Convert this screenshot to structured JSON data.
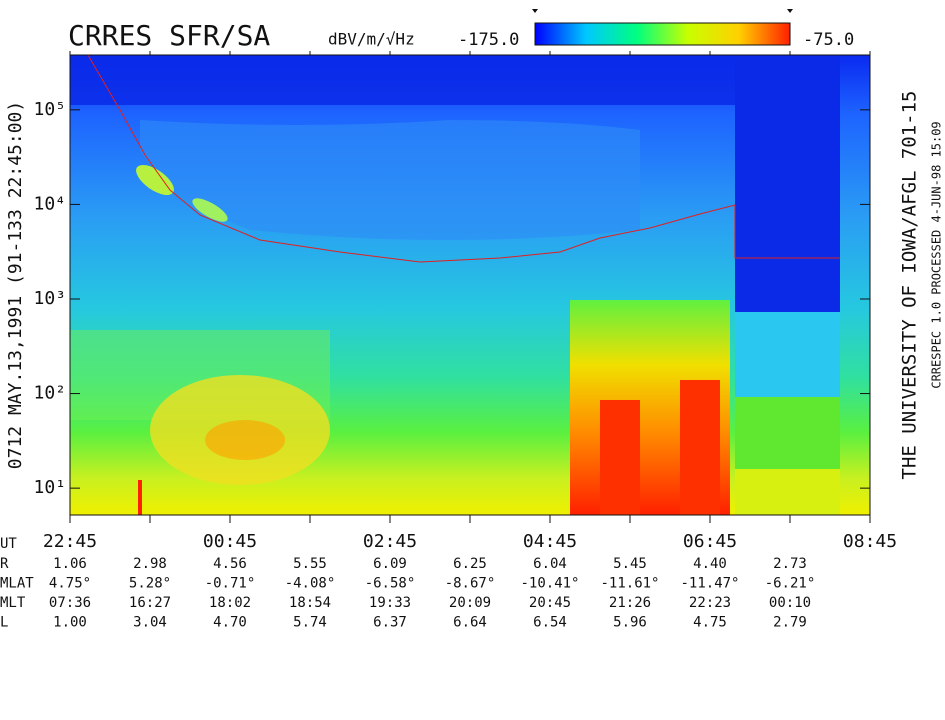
{
  "chart_data": {
    "type": "spectrogram",
    "title": "CRRES SFR/SA",
    "colorbar_label": "dBV/m/√Hz",
    "colorbar_range": [
      {
        "value": -175,
        "label": "-175.0"
      },
      {
        "value": -75,
        "label": "-75.0"
      }
    ],
    "colorbar_colors": [
      "#0000ff",
      "#00c8ff",
      "#00ff80",
      "#c8ff00",
      "#ffd000",
      "#ff2000"
    ],
    "left_label": "0712   MAY.13,1991   (91-133 22:45:00)",
    "right_label": "THE UNIVERSITY OF IOWA/AFGL 701-15",
    "right_note": "CRRESPEC 1.0   PROCESSED   4-JUN-98  15:09",
    "log_y": true,
    "ylim": [
      5.2,
      380000
    ],
    "yticks": [
      {
        "value": 10,
        "label": "10¹"
      },
      {
        "value": 100,
        "label": "10²"
      },
      {
        "value": 1000,
        "label": "10³"
      },
      {
        "value": 10000,
        "label": "10⁴"
      },
      {
        "value": 100000,
        "label": "10⁵"
      }
    ],
    "x_label": "UT",
    "categories": [
      "22:45",
      null,
      "00:45",
      null,
      "02:45",
      null,
      "04:45",
      null,
      "06:45",
      null,
      "08:45"
    ],
    "ephemeris": {
      "labels": [
        "R",
        "MLAT",
        "MLT",
        "L"
      ],
      "rows": [
        [
          "1.06",
          "2.98",
          "4.56",
          "5.55",
          "6.09",
          "6.25",
          "6.04",
          "5.45",
          "4.40",
          "2.73"
        ],
        [
          "4.75°",
          "5.28°",
          "-0.71°",
          "-4.08°",
          "-6.58°",
          "-8.67°",
          "-10.41°",
          "-11.61°",
          "-11.47°",
          "-6.21°"
        ],
        [
          "07:36",
          "16:27",
          "18:02",
          "18:54",
          "19:33",
          "20:09",
          "20:45",
          "21:26",
          "22:23",
          "00:10"
        ],
        [
          "1.00",
          "3.04",
          "4.70",
          "5.74",
          "6.37",
          "6.64",
          "6.54",
          "5.96",
          "4.75",
          "2.79"
        ]
      ]
    }
  }
}
